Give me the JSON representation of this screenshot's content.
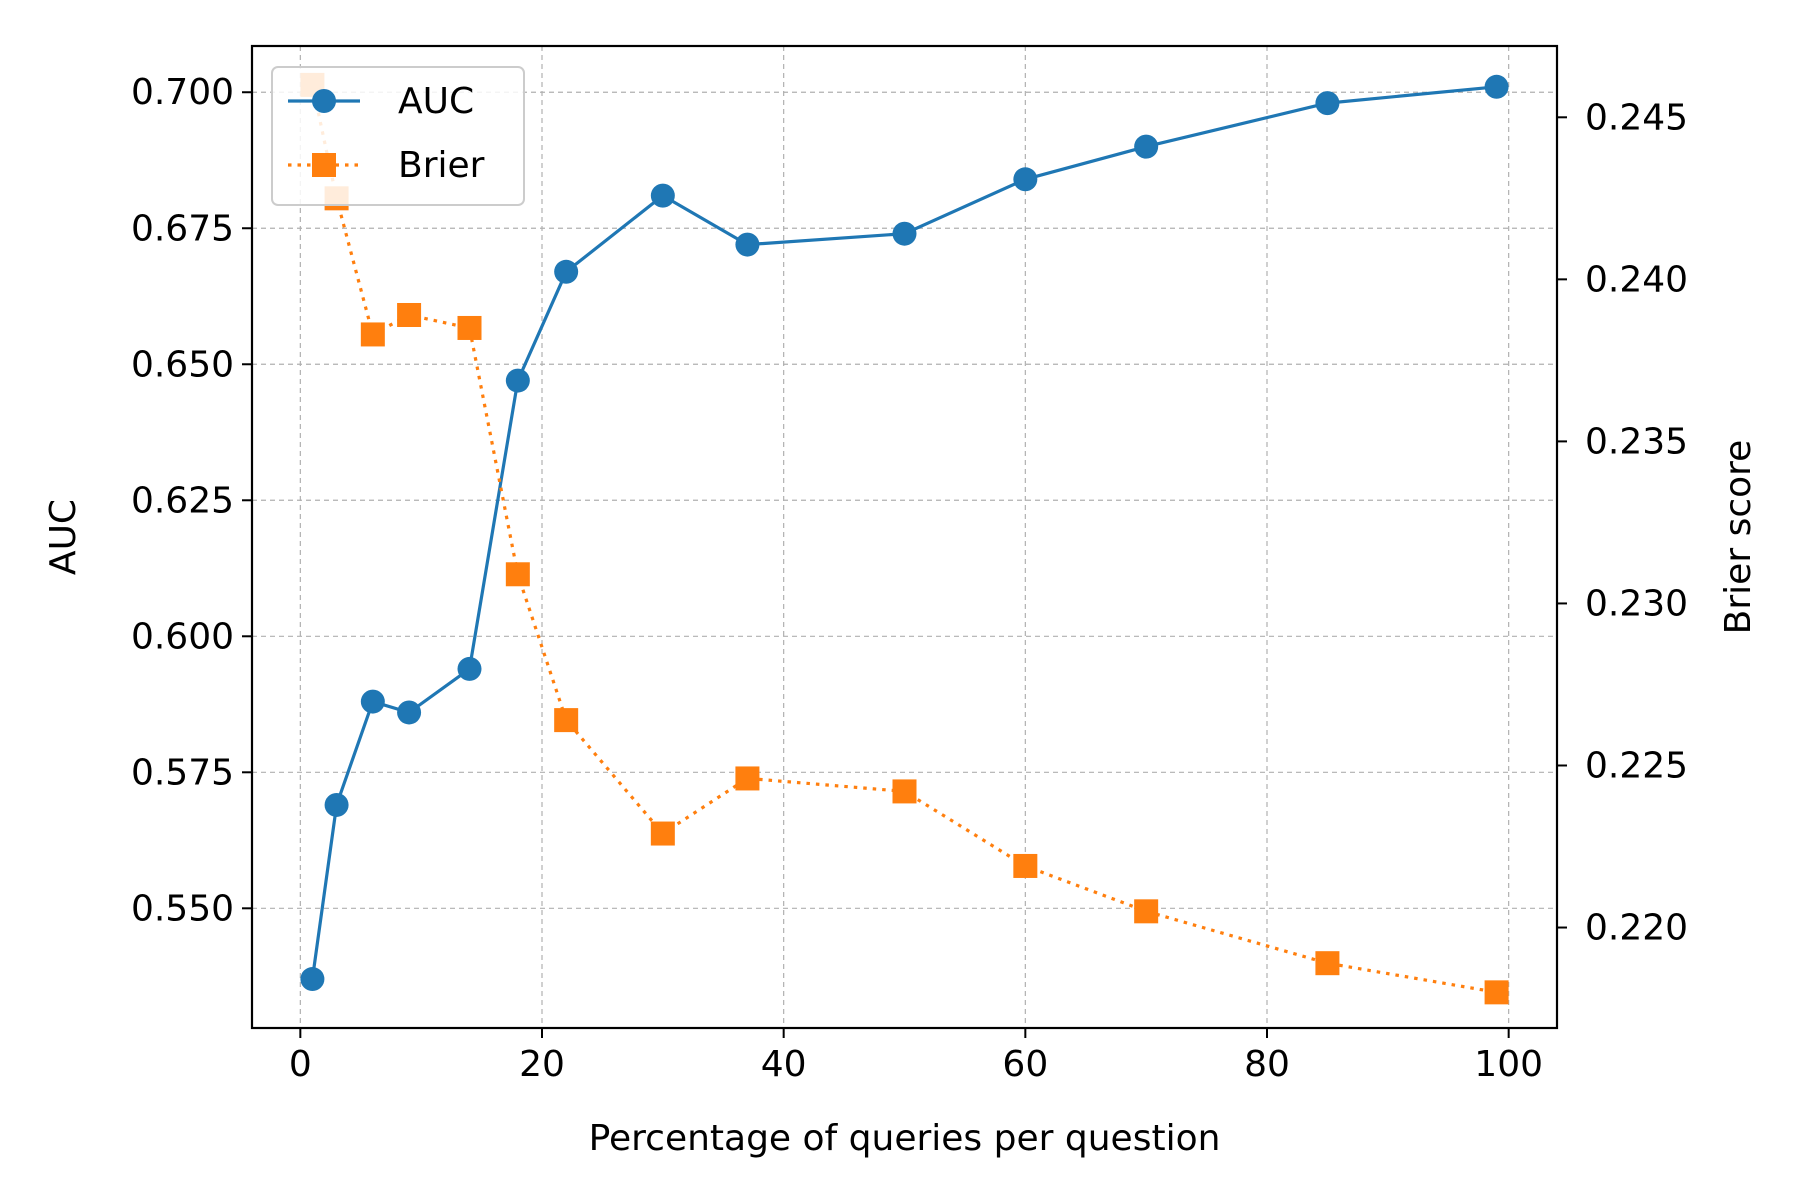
{
  "chart_data": {
    "type": "line",
    "xlabel": "Percentage of queries per question",
    "ylabel_left": "AUC",
    "ylabel_right": "Brier score",
    "xlim": [
      -4,
      104
    ],
    "ylim_left": [
      0.528,
      0.7085
    ],
    "ylim_right": [
      0.2169,
      0.2472
    ],
    "xticks": [
      0,
      20,
      40,
      60,
      80,
      100
    ],
    "yticks_left": [
      0.55,
      0.575,
      0.6,
      0.625,
      0.65,
      0.675,
      0.7
    ],
    "yticks_right": [
      0.22,
      0.225,
      0.23,
      0.235,
      0.24,
      0.245
    ],
    "grid": true,
    "legend_position": "top-left",
    "series": [
      {
        "name": "AUC",
        "axis": "left",
        "color": "#1f77b4",
        "style": "solid",
        "marker": "circle",
        "x": [
          1,
          3,
          6,
          9,
          14,
          18,
          22,
          30,
          37,
          50,
          60,
          70,
          85,
          99
        ],
        "values": [
          0.537,
          0.569,
          0.588,
          0.586,
          0.594,
          0.647,
          0.667,
          0.681,
          0.672,
          0.674,
          0.684,
          0.69,
          0.698,
          0.701
        ]
      },
      {
        "name": "Brier",
        "axis": "right",
        "color": "#ff7f0e",
        "style": "dotted",
        "marker": "square",
        "x": [
          1,
          3,
          6,
          9,
          14,
          18,
          22,
          30,
          37,
          50,
          60,
          70,
          85,
          99
        ],
        "values": [
          0.246,
          0.2425,
          0.2383,
          0.2389,
          0.2385,
          0.2309,
          0.2264,
          0.2229,
          0.2246,
          0.2242,
          0.2219,
          0.2205,
          0.2189,
          0.218
        ]
      }
    ]
  }
}
